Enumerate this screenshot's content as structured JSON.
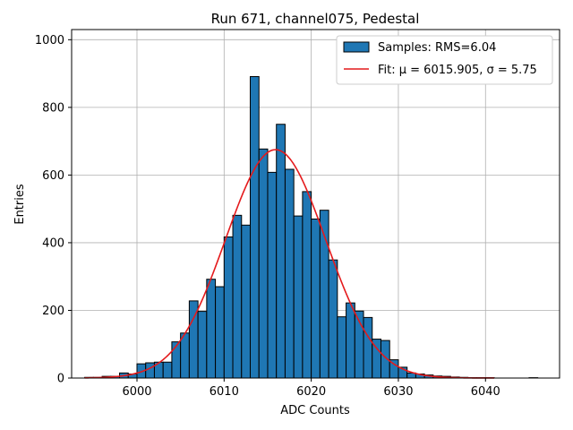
{
  "chart_data": {
    "type": "bar",
    "title": "Run 671, channel075, Pedestal",
    "xlabel": "ADC Counts",
    "ylabel": "Entries",
    "xlim": [
      5992.5,
      6048.5
    ],
    "ylim": [
      0,
      1030
    ],
    "xticks": [
      6000,
      6010,
      6020,
      6030,
      6040
    ],
    "yticks": [
      0,
      200,
      400,
      600,
      800,
      1000
    ],
    "grid": true,
    "legend_position": "top-right",
    "bar_color": "#1f77b4",
    "fit_color": "#e41a1c",
    "bins": {
      "x": [
        5994,
        5995,
        5996,
        5997,
        5998,
        5999,
        6000,
        6001,
        6002,
        6003,
        6004,
        6005,
        6006,
        6007,
        6008,
        6009,
        6010,
        6011,
        6012,
        6013,
        6014,
        6015,
        6016,
        6017,
        6018,
        6019,
        6020,
        6021,
        6022,
        6023,
        6024,
        6025,
        6026,
        6027,
        6028,
        6029,
        6030,
        6031,
        6032,
        6033,
        6034,
        6035,
        6036,
        6037,
        6038,
        6039,
        6040,
        6041,
        6042,
        6043,
        6044,
        6045
      ],
      "values": [
        2,
        2,
        5,
        5,
        15,
        12,
        42,
        45,
        47,
        47,
        107,
        133,
        228,
        197,
        292,
        270,
        417,
        481,
        452,
        891,
        677,
        608,
        750,
        617,
        479,
        551,
        470,
        496,
        349,
        181,
        222,
        198,
        179,
        115,
        111,
        54,
        32,
        15,
        12,
        9,
        6,
        5,
        3,
        2,
        1,
        1,
        1,
        0,
        0,
        0,
        0,
        1
      ]
    },
    "fit": {
      "mu": 6015.905,
      "sigma": 5.75,
      "peak": 675,
      "x_range": [
        5994,
        6041
      ]
    },
    "legend": [
      {
        "label": "Samples: RMS=6.04",
        "kind": "bar"
      },
      {
        "label": "Fit: μ = 6015.905, σ = 5.75",
        "kind": "line"
      }
    ]
  }
}
